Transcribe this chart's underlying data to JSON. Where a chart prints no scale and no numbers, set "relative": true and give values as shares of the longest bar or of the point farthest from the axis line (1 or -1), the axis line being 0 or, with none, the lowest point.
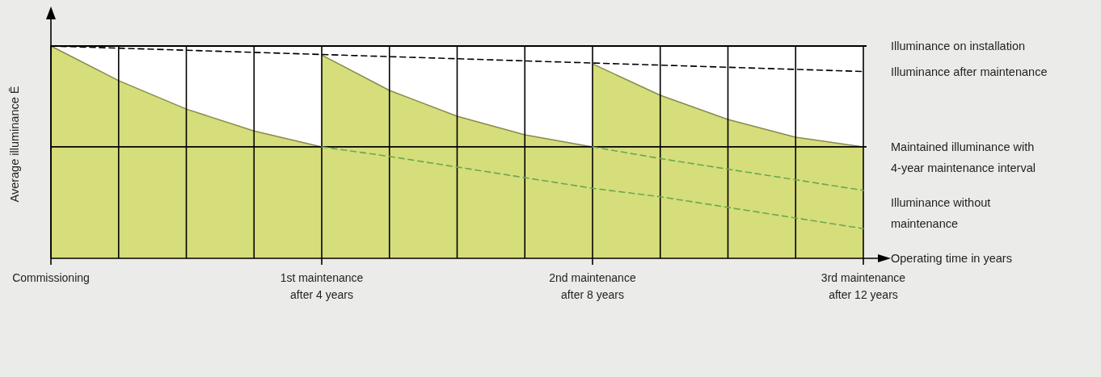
{
  "chart_data": {
    "type": "area",
    "relative": true,
    "xlabel": "Operating time in years",
    "ylabel": "Average illuminance  Ē",
    "categories": [
      "Commissioning",
      null,
      null,
      null,
      "1st maintenance after 4 years",
      null,
      null,
      null,
      "2nd maintenance after 8 years",
      null,
      null,
      null,
      "3rd maintenance after 12 years"
    ],
    "grid": "x",
    "series": [
      {
        "color": "#d6dd7b",
        "values": [
          1,
          0.837,
          0.703,
          0.6,
          0.525,
          null,
          null,
          null,
          null,
          null,
          null,
          null,
          null
        ]
      },
      {
        "color": "#d6dd7b",
        "values": [
          null,
          null,
          null,
          null,
          0.958,
          0.791,
          0.669,
          0.582,
          0.525,
          null,
          null,
          null,
          null
        ]
      },
      {
        "color": "#d6dd7b",
        "values": [
          null,
          null,
          null,
          null,
          null,
          null,
          null,
          null,
          0.916,
          0.768,
          0.654,
          0.57,
          0.525
        ]
      },
      {
        "type": "line",
        "name": "Illuminance after maintenance",
        "color": "#000000",
        "line_style": "dashed",
        "values": [
          1,
          0.99,
          0.98,
          0.97,
          0.96,
          0.95,
          0.94,
          0.93,
          0.92,
          0.91,
          0.9,
          0.89,
          0.88
        ]
      },
      {
        "type": "line",
        "color": "#6aa84f",
        "line_style": "dashed",
        "values": [
          null,
          null,
          null,
          null,
          null,
          null,
          null,
          null,
          0.525,
          0.47,
          0.42,
          0.37,
          0.32
        ]
      },
      {
        "type": "line",
        "name": "Illuminance without maintenance",
        "color": "#6aa84f",
        "line_style": "dashed",
        "values": [
          null,
          null,
          null,
          null,
          0.525,
          0.48,
          0.43,
          0.38,
          0.33,
          0.29,
          0.24,
          0.19,
          0.14
        ]
      }
    ],
    "ref_lines": [
      {
        "axis": "y",
        "value": 1,
        "label": "Illuminance on installation",
        "color": "#000000"
      },
      {
        "axis": "y",
        "value": 0.525,
        "label": "Maintained illuminance with 4-year maintenance interval",
        "color": "#000000"
      }
    ]
  }
}
